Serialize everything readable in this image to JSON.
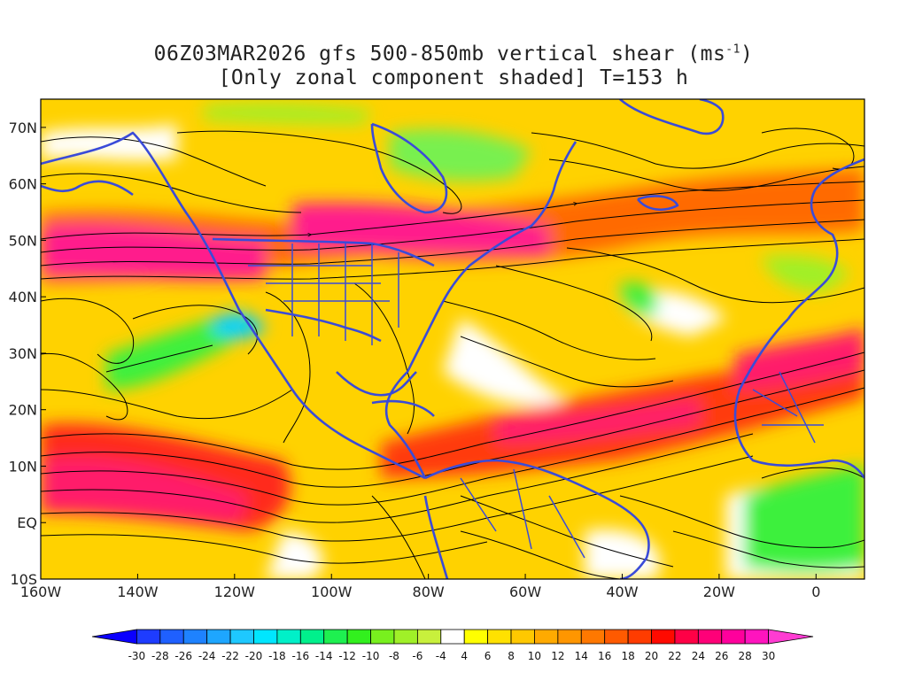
{
  "title": {
    "line1_prefix": "06Z03MAR2026 gfs 500-850mb vertical shear (ms",
    "line1_superscript": "-1",
    "line1_suffix": ")",
    "line2": "[Only zonal component shaded] T=153 h"
  },
  "map": {
    "lon_range": [
      -160,
      10
    ],
    "lat_range": [
      -10,
      75
    ],
    "lat_labels": [
      {
        "value": 70,
        "text": "70N"
      },
      {
        "value": 60,
        "text": "60N"
      },
      {
        "value": 50,
        "text": "50N"
      },
      {
        "value": 40,
        "text": "40N"
      },
      {
        "value": 30,
        "text": "30N"
      },
      {
        "value": 20,
        "text": "20N"
      },
      {
        "value": 10,
        "text": "10N"
      },
      {
        "value": 0,
        "text": "EQ"
      },
      {
        "value": -10,
        "text": "10S"
      }
    ],
    "lon_labels": [
      {
        "value": -160,
        "text": "160W"
      },
      {
        "value": -140,
        "text": "140W"
      },
      {
        "value": -120,
        "text": "120W"
      },
      {
        "value": -100,
        "text": "100W"
      },
      {
        "value": -80,
        "text": "80W"
      },
      {
        "value": -60,
        "text": "60W"
      },
      {
        "value": -40,
        "text": "40W"
      },
      {
        "value": -20,
        "text": "20W"
      },
      {
        "value": 0,
        "text": "0"
      }
    ],
    "coastline_color": "#3a4bd8",
    "streamline_color": "#000000",
    "shear_features": [
      {
        "name": "north-pacific-jet",
        "lon": -145,
        "lat": 46,
        "value": 30
      },
      {
        "name": "north-america-jet",
        "lon": -85,
        "lat": 52,
        "value": 28
      },
      {
        "name": "north-atlantic-jet",
        "lon": -30,
        "lat": 55,
        "value": 20
      },
      {
        "name": "tropical-pacific-band",
        "lon": -135,
        "lat": 8,
        "value": 24
      },
      {
        "name": "tropical-atlantic-band",
        "lon": -40,
        "lat": 15,
        "value": 22
      },
      {
        "name": "subtropical-pacific-low",
        "lon": -130,
        "lat": 28,
        "value": -10
      },
      {
        "name": "west-africa-negative",
        "lon": -5,
        "lat": 0,
        "value": -8
      },
      {
        "name": "arctic-green",
        "lon": -75,
        "lat": 64,
        "value": -8
      }
    ]
  },
  "colorbar": {
    "levels": [
      -30,
      -28,
      -26,
      -24,
      -22,
      -20,
      -18,
      -16,
      -14,
      -12,
      -10,
      -8,
      -6,
      -4,
      4,
      6,
      8,
      10,
      12,
      14,
      16,
      18,
      20,
      22,
      24,
      26,
      28,
      30
    ],
    "labels": [
      "-30",
      "-28",
      "-26",
      "-24",
      "-22",
      "-20",
      "-18",
      "-16",
      "-14",
      "-12",
      "-10",
      "-8",
      "-6",
      "-4",
      "4",
      "6",
      "8",
      "10",
      "12",
      "14",
      "16",
      "18",
      "20",
      "22",
      "24",
      "26",
      "28",
      "30"
    ],
    "colors": [
      "#0a00ff",
      "#1e3cff",
      "#1f60ff",
      "#1e82ff",
      "#1ea6ff",
      "#1ec8ff",
      "#00e6ff",
      "#00f0c8",
      "#00f08c",
      "#1ef050",
      "#32f01e",
      "#78f01e",
      "#a0f028",
      "#c8f03c",
      "#ffffff",
      "#ffff00",
      "#ffe100",
      "#ffc800",
      "#ffaa00",
      "#ff9600",
      "#ff7800",
      "#ff5a00",
      "#ff3c00",
      "#ff0a00",
      "#ff0046",
      "#ff0078",
      "#ff009c",
      "#ff14be",
      "#ff3cd2"
    ]
  }
}
